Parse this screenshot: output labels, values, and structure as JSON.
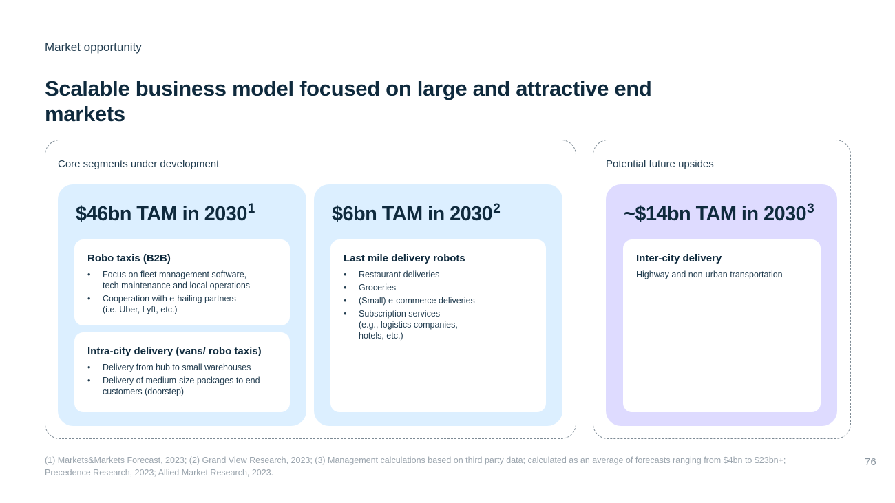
{
  "header": {
    "eyebrow": "Market opportunity",
    "title": "Scalable business model focused on large and attractive end markets"
  },
  "core": {
    "label": "Core segments under development",
    "panels": [
      {
        "tam": "$46bn TAM in 2030",
        "tam_sup": "1",
        "cards": [
          {
            "title": "Robo taxis (B2B)",
            "bullets": [
              "Focus on fleet management software,\ntech maintenance and local operations",
              "Cooperation with e-hailing partners\n(i.e. Uber, Lyft, etc.)"
            ]
          },
          {
            "title": "Intra-city delivery (vans/ robo taxis)",
            "bullets": [
              "Delivery from hub to small warehouses",
              "Delivery of medium-size packages to end\ncustomers (doorstep)"
            ]
          }
        ]
      },
      {
        "tam": "$6bn TAM in 2030",
        "tam_sup": "2",
        "cards": [
          {
            "title": "Last mile delivery robots",
            "bullets": [
              "Restaurant deliveries",
              "Groceries",
              "(Small) e-commerce deliveries",
              "Subscription services\n(e.g., logistics companies,\nhotels, etc.)"
            ]
          }
        ]
      }
    ]
  },
  "future": {
    "label": "Potential future upsides",
    "panel": {
      "tam": "~$14bn TAM in 2030",
      "tam_sup": "3",
      "card": {
        "title": "Inter-city delivery",
        "text": "Highway and non-urban transportation"
      }
    }
  },
  "footer": {
    "footnote": "(1) Markets&Markets Forecast, 2023; (2) Grand View Research, 2023; (3) Management calculations based on third party data; calculated as an average of forecasts ranging from $4bn to $23bn+; Precedence Research, 2023; Allied Market Research, 2023.",
    "page_number": "76"
  },
  "colors": {
    "text_dark": "#0f2a3d",
    "panel_blue": "#dcefff",
    "panel_purple": "#dedbff",
    "muted": "#9aa4ad"
  }
}
